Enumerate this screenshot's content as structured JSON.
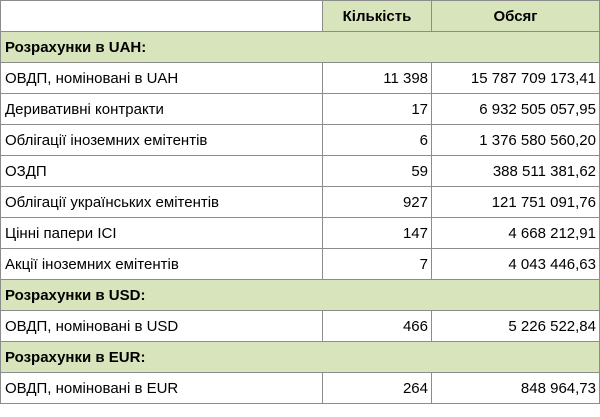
{
  "header": {
    "col1": "",
    "col2": "Кількість",
    "col3": "Обсяг"
  },
  "sections": [
    {
      "title": "Розрахунки в UAH:",
      "rows": [
        {
          "name": "ОВДП, номіновані в UAH",
          "count": "11 398",
          "volume": "15 787 709 173,41"
        },
        {
          "name": "Деривативні контракти",
          "count": "17",
          "volume": "6 932 505 057,95"
        },
        {
          "name": "Облігації іноземних емітентів",
          "count": "6",
          "volume": "1 376 580 560,20"
        },
        {
          "name": "ОЗДП",
          "count": "59",
          "volume": "388 511 381,62"
        },
        {
          "name": "Облігації українських емітентів",
          "count": "927",
          "volume": "121 751 091,76"
        },
        {
          "name": "Цінні папери ІСІ",
          "count": "147",
          "volume": "4 668 212,91"
        },
        {
          "name": "Акції іноземних емітентів",
          "count": "7",
          "volume": "4 043 446,63"
        }
      ]
    },
    {
      "title": "Розрахунки в USD:",
      "rows": [
        {
          "name": "ОВДП, номіновані в USD",
          "count": "466",
          "volume": "5 226 522,84"
        }
      ]
    },
    {
      "title": "Розрахунки в EUR:",
      "rows": [
        {
          "name": "ОВДП, номіновані в EUR",
          "count": "264",
          "volume": "848 964,73"
        }
      ]
    }
  ]
}
